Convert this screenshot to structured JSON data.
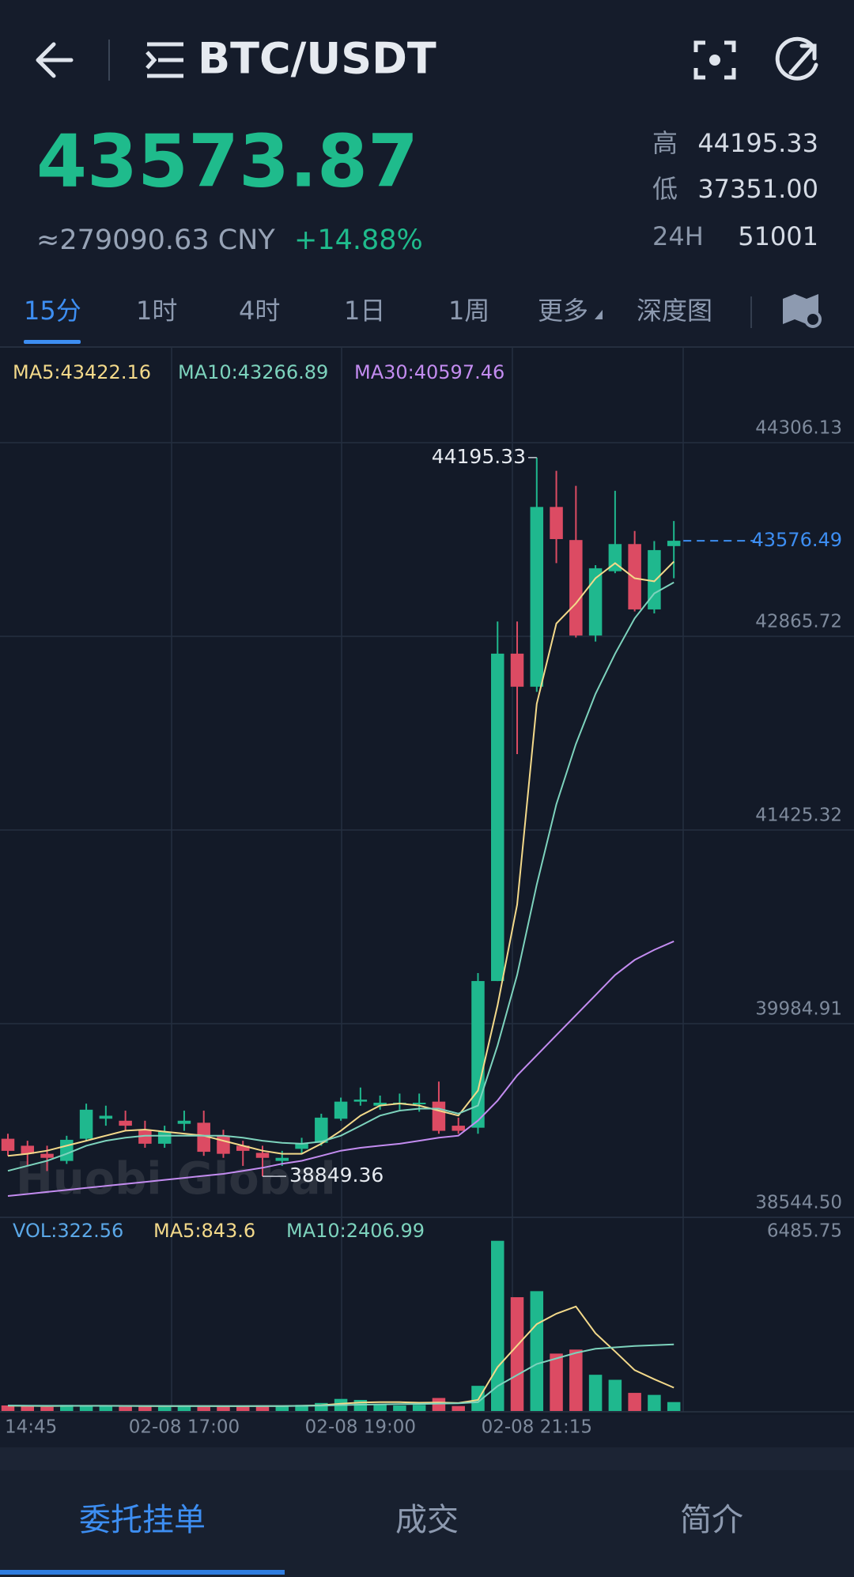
{
  "header": {
    "title": "BTC/USDT"
  },
  "ticker": {
    "price": "43573.87",
    "cny": "≈279090.63 CNY",
    "change": "+14.88%",
    "stats": [
      {
        "label": "高",
        "value": "44195.33"
      },
      {
        "label": "低",
        "value": "37351.00"
      },
      {
        "label": "24H",
        "value": "51001"
      }
    ]
  },
  "periods": [
    "15分",
    "1时",
    "4时",
    "1日",
    "1周",
    "更多",
    "深度图"
  ],
  "chart": {
    "type": "candlestick",
    "up_color": "#1fb88e",
    "down_color": "#dc4b63",
    "ma_labels": [
      "MA5:43422.16",
      "MA10:43266.89",
      "MA30:40597.46"
    ],
    "categories": [
      "14:45",
      null,
      null,
      null,
      null,
      null,
      null,
      null,
      null,
      "02-08 17:00",
      null,
      null,
      null,
      null,
      null,
      null,
      null,
      null,
      "02-08 19:00",
      null,
      null,
      null,
      null,
      null,
      null,
      null,
      null,
      "02-08 21:15",
      null,
      null,
      null,
      null,
      null,
      null,
      null
    ],
    "candles": [
      [
        39129,
        39166,
        39002,
        39039
      ],
      [
        39077,
        39114,
        38927,
        39017
      ],
      [
        39017,
        39077,
        38889,
        38987
      ],
      [
        38964,
        39151,
        38942,
        39121
      ],
      [
        39129,
        39390,
        39114,
        39345
      ],
      [
        39278,
        39375,
        39226,
        39300
      ],
      [
        39263,
        39338,
        39188,
        39226
      ],
      [
        39196,
        39263,
        39062,
        39092
      ],
      [
        39092,
        39226,
        39062,
        39181
      ],
      [
        39240,
        39338,
        39188,
        39263
      ],
      [
        39248,
        39338,
        39002,
        39032
      ],
      [
        39151,
        39196,
        38987,
        39017
      ],
      [
        39077,
        39114,
        38927,
        39039
      ],
      [
        39024,
        39077,
        38849.36,
        38987
      ],
      [
        38964,
        39039,
        38927,
        38987
      ],
      [
        39054,
        39136,
        39017,
        39092
      ],
      [
        39099,
        39315,
        39077,
        39286
      ],
      [
        39278,
        39435,
        39263,
        39405
      ],
      [
        39405,
        39510,
        39375,
        39420
      ],
      [
        39375,
        39450,
        39345,
        39397
      ],
      [
        39390,
        39465,
        39345,
        39397
      ],
      [
        39390,
        39465,
        39330,
        39397
      ],
      [
        39405,
        39554,
        39166,
        39188
      ],
      [
        39226,
        39286,
        39166,
        39188
      ],
      [
        39211,
        40361,
        39166,
        40302
      ],
      [
        40302,
        42976,
        40302,
        42737
      ],
      [
        42737,
        42976,
        41990,
        42491
      ],
      [
        42491,
        44195.33,
        42453,
        43828
      ],
      [
        43828,
        44097,
        43410,
        43589
      ],
      [
        43582,
        43985,
        42857,
        42872
      ],
      [
        42872,
        43395,
        42827,
        43372
      ],
      [
        43350,
        43948,
        43335,
        43552
      ],
      [
        43552,
        43649,
        43051,
        43066
      ],
      [
        43066,
        43574,
        43036,
        43507
      ],
      [
        43537,
        43723,
        43298,
        43576.49
      ]
    ],
    "ma": [
      {
        "color": "#f3d98a",
        "values": [
          39002,
          39017,
          39040,
          39077,
          39114,
          39152,
          39189,
          39197,
          39182,
          39167,
          39152,
          39114,
          39077,
          39040,
          39017,
          39017,
          39092,
          39189,
          39301,
          39376,
          39391,
          39376,
          39338,
          39301,
          39488,
          40123,
          40870,
          42364,
          42961,
          43111,
          43298,
          43410,
          43298,
          43275,
          43422.16
        ]
      },
      {
        "color": "#7dd3bd",
        "values": [
          38890,
          38928,
          38965,
          39017,
          39077,
          39114,
          39137,
          39152,
          39152,
          39152,
          39152,
          39152,
          39137,
          39114,
          39099,
          39092,
          39107,
          39152,
          39226,
          39301,
          39338,
          39353,
          39353,
          39316,
          39376,
          39824,
          40347,
          41019,
          41617,
          42065,
          42438,
          42737,
          42999,
          43185,
          43266.89
        ]
      },
      {
        "color": "#c38cf0",
        "values": [
          38703,
          38718,
          38733,
          38748,
          38763,
          38778,
          38793,
          38808,
          38823,
          38838,
          38853,
          38868,
          38890,
          38913,
          38943,
          38965,
          39002,
          39040,
          39062,
          39077,
          39092,
          39114,
          39137,
          39152,
          39264,
          39413,
          39600,
          39749,
          39899,
          40048,
          40197,
          40347,
          40459,
          40534,
          40597.46
        ]
      }
    ],
    "ylim": [
      38544.5,
      44306.13
    ],
    "yticks": [
      {
        "value": 38544.5,
        "label": "38544.50"
      },
      39984.91,
      41425.32,
      42865.72,
      44306.13
    ],
    "grid": true,
    "watermark": "Huobi Global"
  },
  "volume": {
    "label": "VOL:322.56",
    "label_color": "#5ba8e8",
    "ma_labels": [
      "MA5:843.6",
      "MA10:2406.99"
    ],
    "values": [
      200,
      180,
      150,
      220,
      200,
      170,
      160,
      180,
      150,
      200,
      190,
      160,
      170,
      200,
      180,
      220,
      290,
      437,
      400,
      250,
      200,
      220,
      470,
      180,
      910,
      6152,
      4113,
      4332,
      2075,
      2220,
      1310,
      1128,
      655,
      582,
      322.56
    ],
    "ma": [
      {
        "color": "#f3d98a",
        "values": [
          190,
          185,
          180,
          185,
          190,
          190,
          185,
          180,
          175,
          180,
          180,
          175,
          175,
          180,
          180,
          190,
          210,
          265,
          305,
          320,
          320,
          300,
          310,
          290,
          400,
          1590,
          2365,
          3141,
          3516,
          3778,
          2810,
          2152,
          1478,
          1150,
          843.6
        ]
      },
      {
        "color": "#7dd3bd",
        "values": [
          200,
          195,
          190,
          188,
          186,
          185,
          184,
          183,
          182,
          181,
          180,
          180,
          178,
          178,
          180,
          185,
          195,
          215,
          230,
          240,
          250,
          255,
          270,
          280,
          320,
          900,
          1300,
          1700,
          1900,
          2100,
          2250,
          2300,
          2350,
          2380,
          2406.99
        ]
      }
    ],
    "ylim": [
      0,
      6485.75
    ],
    "yticks": [
      6485.75
    ]
  },
  "tabs": [
    "委托挂单",
    "成交",
    "简介"
  ]
}
